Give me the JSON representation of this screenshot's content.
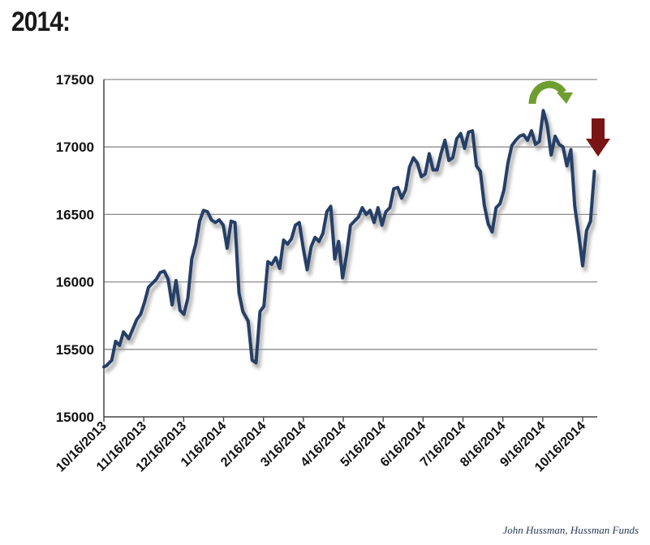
{
  "page_title": "2014:",
  "credit": "John Hussman, Hussman Funds",
  "colors": {
    "line": "#263f66",
    "shadow": "#9a9a9a",
    "grid": "#8c8c8c",
    "axis": "#444444",
    "green_arrow": "#6e9e2f",
    "red_arrow": "#7a1515"
  },
  "icons": {
    "green_arrow": "curved-arrow-over-icon",
    "red_arrow": "down-arrow-icon"
  },
  "chart_data": {
    "type": "line",
    "title": "",
    "xlabel": "",
    "ylabel": "",
    "ylim": [
      15000,
      17500
    ],
    "yticks": [
      "17500",
      "17000",
      "16500",
      "16000",
      "15500",
      "15000"
    ],
    "grid": true,
    "legend": "none",
    "xticks": [
      "10/16/2013",
      "11/16/2013",
      "12/16/2013",
      "1/16/2014",
      "2/16/2014",
      "3/16/2014",
      "4/16/2014",
      "5/16/2014",
      "6/16/2014",
      "7/16/2014",
      "8/16/2014",
      "9/16/2014",
      "10/16/2014"
    ],
    "series": [
      {
        "x": [
          "2013-10-16",
          "2013-10-18",
          "2013-10-22",
          "2013-10-25",
          "2013-10-28",
          "2013-10-31",
          "2013-11-04",
          "2013-11-07",
          "2013-11-10",
          "2013-11-13",
          "2013-11-16",
          "2013-11-19",
          "2013-11-22",
          "2013-11-25",
          "2013-11-28",
          "2013-12-01",
          "2013-12-04",
          "2013-12-07",
          "2013-12-10",
          "2013-12-13",
          "2013-12-16",
          "2013-12-19",
          "2013-12-22",
          "2013-12-25",
          "2013-12-28",
          "2013-12-31",
          "2014-01-03",
          "2014-01-06",
          "2014-01-09",
          "2014-01-12",
          "2014-01-15",
          "2014-01-18",
          "2014-01-21",
          "2014-01-24",
          "2014-01-27",
          "2014-01-30",
          "2014-02-03",
          "2014-02-06",
          "2014-02-09",
          "2014-02-12",
          "2014-02-15",
          "2014-02-18",
          "2014-02-21",
          "2014-02-24",
          "2014-02-27",
          "2014-03-02",
          "2014-03-05",
          "2014-03-08",
          "2014-03-11",
          "2014-03-14",
          "2014-03-17",
          "2014-03-20",
          "2014-03-23",
          "2014-03-26",
          "2014-03-29",
          "2014-04-01",
          "2014-04-04",
          "2014-04-07",
          "2014-04-10",
          "2014-04-13",
          "2014-04-16",
          "2014-04-19",
          "2014-04-22",
          "2014-04-25",
          "2014-04-28",
          "2014-05-01",
          "2014-05-04",
          "2014-05-07",
          "2014-05-10",
          "2014-05-13",
          "2014-05-16",
          "2014-05-19",
          "2014-05-22",
          "2014-05-25",
          "2014-05-28",
          "2014-05-31",
          "2014-06-03",
          "2014-06-06",
          "2014-06-09",
          "2014-06-12",
          "2014-06-15",
          "2014-06-18",
          "2014-06-21",
          "2014-06-24",
          "2014-06-27",
          "2014-06-30",
          "2014-07-03",
          "2014-07-06",
          "2014-07-09",
          "2014-07-12",
          "2014-07-15",
          "2014-07-18",
          "2014-07-21",
          "2014-07-24",
          "2014-07-27",
          "2014-07-30",
          "2014-08-02",
          "2014-08-05",
          "2014-08-08",
          "2014-08-11",
          "2014-08-14",
          "2014-08-17",
          "2014-08-20",
          "2014-08-23",
          "2014-08-26",
          "2014-08-29",
          "2014-09-01",
          "2014-09-04",
          "2014-09-07",
          "2014-09-10",
          "2014-09-13",
          "2014-09-16",
          "2014-09-19",
          "2014-09-22",
          "2014-09-25",
          "2014-09-28",
          "2014-10-01",
          "2014-10-04",
          "2014-10-07",
          "2014-10-10",
          "2014-10-13",
          "2014-10-16",
          "2014-10-19",
          "2014-10-22",
          "2014-10-25"
        ],
        "values": [
          15370,
          15380,
          15420,
          15560,
          15530,
          15630,
          15580,
          15650,
          15720,
          15760,
          15850,
          15960,
          15990,
          16020,
          16070,
          16080,
          16020,
          15830,
          16010,
          15790,
          15760,
          15880,
          16170,
          16280,
          16450,
          16530,
          16520,
          16460,
          16440,
          16460,
          16420,
          16250,
          16450,
          16440,
          15920,
          15780,
          15710,
          15420,
          15400,
          15780,
          15820,
          16150,
          16130,
          16180,
          16100,
          16310,
          16280,
          16320,
          16420,
          16440,
          16250,
          16090,
          16260,
          16330,
          16300,
          16360,
          16520,
          16560,
          16170,
          16300,
          16030,
          16200,
          16420,
          16450,
          16480,
          16550,
          16500,
          16530,
          16440,
          16550,
          16420,
          16520,
          16550,
          16690,
          16700,
          16620,
          16680,
          16850,
          16920,
          16880,
          16780,
          16800,
          16950,
          16830,
          16830,
          16950,
          17050,
          16900,
          16920,
          17060,
          17100,
          16990,
          17110,
          17120,
          16860,
          16820,
          16570,
          16430,
          16370,
          16550,
          16580,
          16680,
          16880,
          17010,
          17050,
          17080,
          17090,
          17050,
          17120,
          17020,
          17040,
          17270,
          17160,
          16940,
          17080,
          17020,
          17000,
          16860,
          16980,
          16560,
          16350,
          16120,
          16380,
          16450,
          16820
        ]
      }
    ]
  }
}
